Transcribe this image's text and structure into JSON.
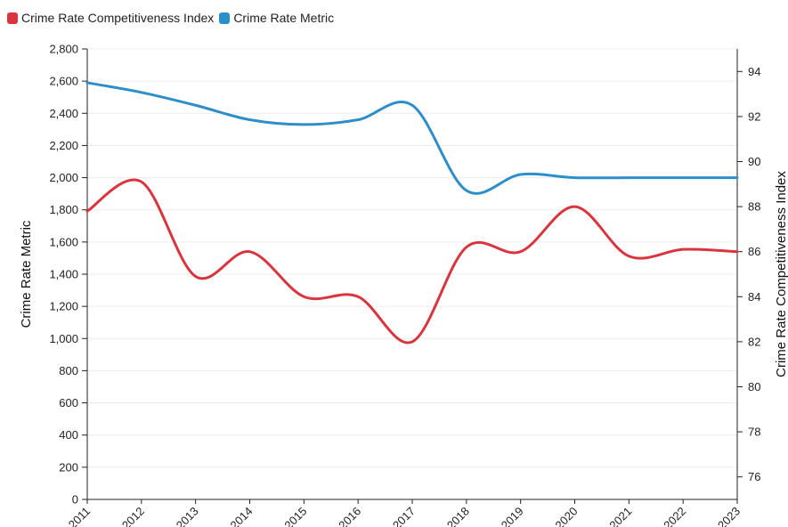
{
  "chart_data": {
    "type": "line",
    "categories": [
      "2011",
      "2012",
      "2013",
      "2014",
      "2015",
      "2016",
      "2017",
      "2018",
      "2019",
      "2020",
      "2021",
      "2022",
      "2023"
    ],
    "series": [
      {
        "name": "Crime Rate Competitiveness Index",
        "axis": "right",
        "color": "#d8353f",
        "values": [
          87.8,
          89.1,
          84.9,
          86.0,
          84.0,
          84.0,
          82.0,
          86.2,
          86.0,
          88.0,
          85.8,
          86.1,
          86.0
        ]
      },
      {
        "name": "Crime Rate Metric",
        "axis": "left",
        "color": "#2e8ec9",
        "values": [
          2590,
          2530,
          2450,
          2360,
          2330,
          2360,
          2450,
          1920,
          2020,
          2000,
          2000,
          2000,
          2000
        ]
      }
    ],
    "y_left": {
      "label": "Crime Rate Metric",
      "min": 0,
      "max": 2800,
      "step": 200
    },
    "y_right": {
      "label": "Crime Rate Competitiveness Index",
      "min": 75,
      "max": 95,
      "ticks": [
        76,
        78,
        80,
        82,
        84,
        86,
        88,
        90,
        92,
        94
      ]
    },
    "grid": true,
    "legend_position": "top-left"
  },
  "legend": {
    "items": [
      {
        "label": "Crime Rate Competitiveness Index",
        "color": "#d8353f"
      },
      {
        "label": "Crime Rate Metric",
        "color": "#2e8ec9"
      }
    ]
  }
}
